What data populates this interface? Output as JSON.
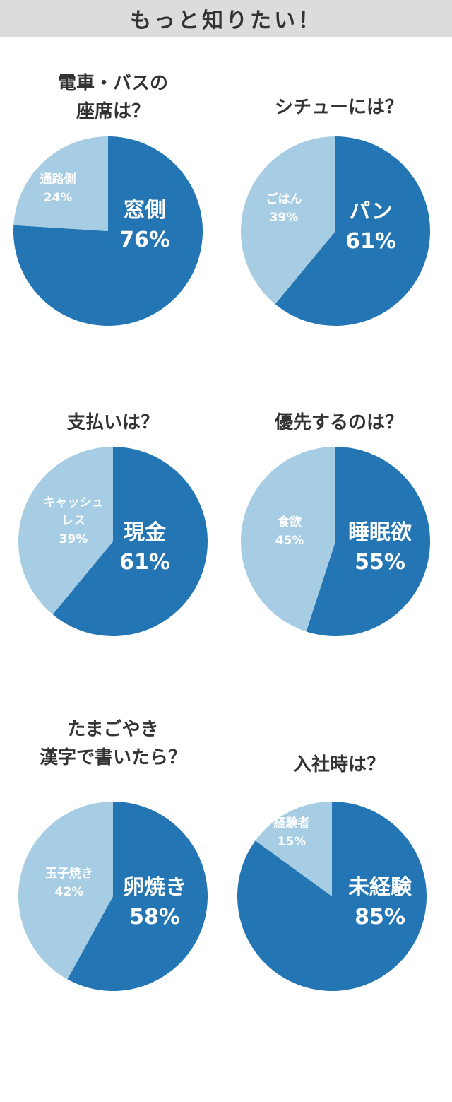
{
  "header": {
    "title": "もっと知りたい！"
  },
  "colors": {
    "major": "#2376b3",
    "minor": "#a6cde4",
    "header_bg": "#dcdcdc",
    "text": "#333333"
  },
  "chart_data": [
    {
      "type": "pie",
      "title_lines": [
        "電車・バスの",
        "座席は？"
      ],
      "slices": [
        {
          "label": "窓側",
          "value": 76
        },
        {
          "label": "通路側",
          "value": 24
        }
      ]
    },
    {
      "type": "pie",
      "title_lines": [
        "シチューには？"
      ],
      "slices": [
        {
          "label": "パン",
          "value": 61
        },
        {
          "label": "ごはん",
          "value": 39
        }
      ]
    },
    {
      "type": "pie",
      "title_lines": [
        "支払いは？"
      ],
      "slices": [
        {
          "label": "現金",
          "value": 61
        },
        {
          "label": "キャッシュレス",
          "value": 39
        }
      ]
    },
    {
      "type": "pie",
      "title_lines": [
        "優先するのは？"
      ],
      "slices": [
        {
          "label": "睡眠欲",
          "value": 55
        },
        {
          "label": "食欲",
          "value": 45
        }
      ]
    },
    {
      "type": "pie",
      "title_lines": [
        "たまごやき",
        "漢字で書いたら？"
      ],
      "slices": [
        {
          "label": "卵焼き",
          "value": 58
        },
        {
          "label": "玉子焼き",
          "value": 42
        }
      ]
    },
    {
      "type": "pie",
      "title_lines": [
        "入社時は？"
      ],
      "slices": [
        {
          "label": "未経験",
          "value": 85
        },
        {
          "label": "経験者",
          "value": 15
        }
      ]
    }
  ]
}
